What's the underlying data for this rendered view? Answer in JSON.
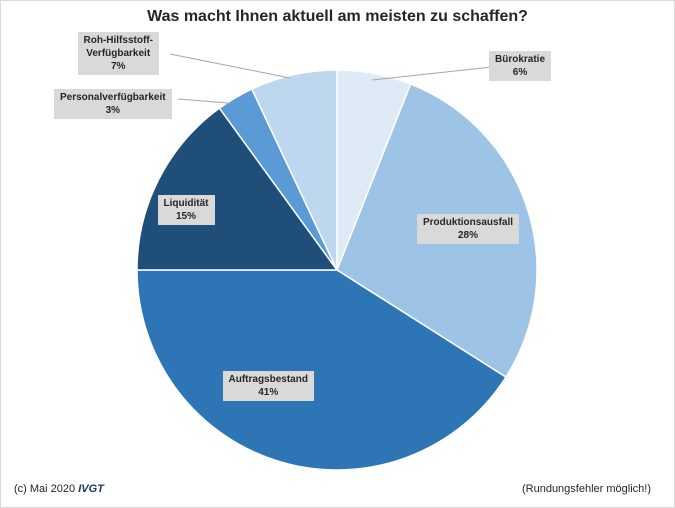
{
  "chart_data": {
    "type": "pie",
    "title": "Was macht Ihnen aktuell am meisten zu schaffen?",
    "categories": [
      "Bürokratie",
      "Produktionsausfall",
      "Auftragsbestand",
      "Liquidität",
      "Personalverfügbarkeit",
      "Roh-Hilfsstoff-Verfügbarkeit"
    ],
    "values": [
      6,
      28,
      41,
      15,
      3,
      7
    ],
    "value_labels": [
      "6%",
      "28%",
      "41%",
      "15%",
      "3%",
      "7%"
    ],
    "colors": [
      "#deebf7",
      "#9dc3e6",
      "#2e75b6",
      "#1f4e79",
      "#5b9bd5",
      "#bdd7ee"
    ],
    "label_lines": [
      [
        "Bürokratie"
      ],
      [
        "Produktionsausfall"
      ],
      [
        "Auftragsbestand"
      ],
      [
        "Liquidität"
      ],
      [
        "Personalverfügbarkeit"
      ],
      [
        "Roh-Hilfsstoff-",
        "Verfügbarkeit"
      ]
    ]
  },
  "footer": {
    "copyright": "(c) Mai 2020",
    "brand": "IVGT",
    "note": "(Rundungsfehler möglich!)"
  }
}
